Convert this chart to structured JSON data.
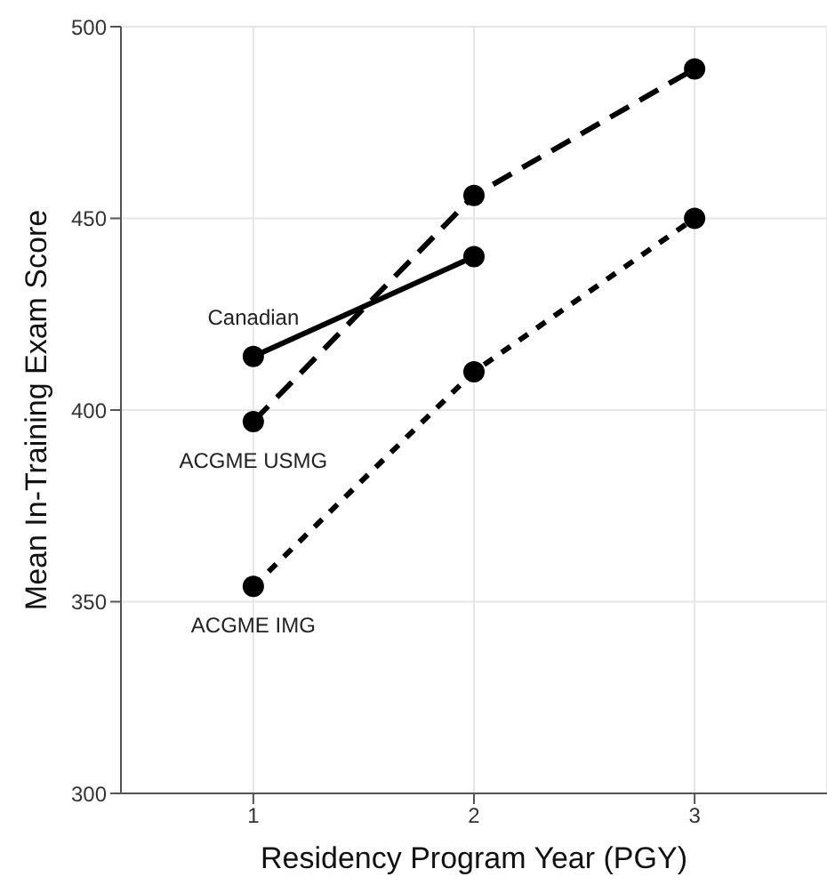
{
  "chart_data": {
    "type": "line",
    "xlabel": "Residency Program Year (PGY)",
    "ylabel": "Mean In-Training Exam Score",
    "x": [
      1,
      2,
      3
    ],
    "series": [
      {
        "name": "Canadian",
        "color": "#000000",
        "values": [
          414,
          440,
          null
        ],
        "line_style": "solid"
      },
      {
        "name": "ACGME USMG",
        "color": "#000000",
        "values": [
          397,
          456,
          489
        ],
        "line_style": "dashed"
      },
      {
        "name": "ACGME IMG",
        "color": "#000000",
        "values": [
          354,
          410,
          450
        ],
        "line_style": "dotted"
      }
    ],
    "xlim": [
      0.4,
      3.6
    ],
    "xticks": [
      1,
      2,
      3
    ],
    "ylim": [
      300,
      500
    ],
    "yticks": [
      300,
      350,
      400,
      450,
      500
    ],
    "grid": true,
    "legend": false,
    "marker": "circle"
  }
}
